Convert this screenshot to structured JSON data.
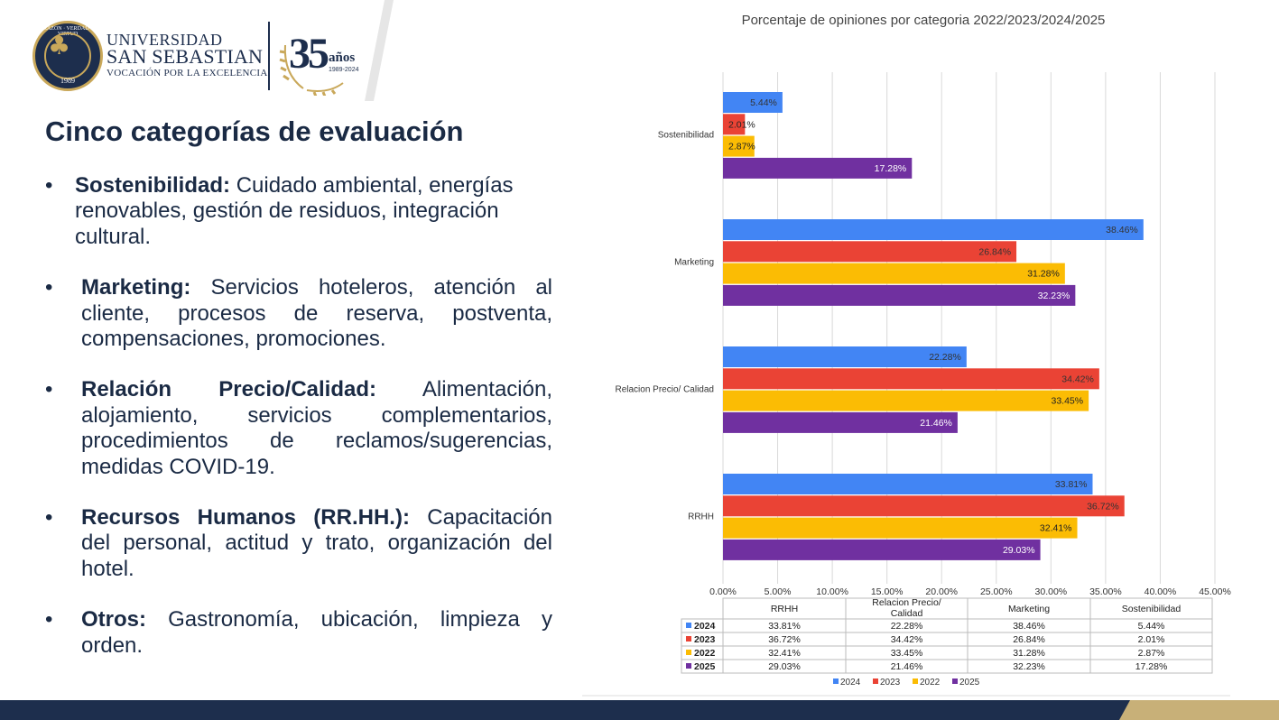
{
  "header": {
    "seal_year": "1989",
    "seal_motto": "RAZON · VERDAD · VIRTUD",
    "university_line1": "UNIVERSIDAD",
    "university_line2": "SAN SEBASTIAN",
    "tagline": "VOCACIÓN POR LA EXCELENCIA",
    "anniversary_number": "35",
    "anniversary_word": "años",
    "anniversary_years": "1989-2024"
  },
  "slide": {
    "title": "Cinco categorías de evaluación",
    "bullets": [
      {
        "label": "Sostenibilidad:",
        "text": "Cuidado ambiental, energías renovables, gestión de residuos, integración cultural."
      },
      {
        "label": "Marketing:",
        "text": "Servicios hoteleros, atención al cliente, procesos de reserva, postventa, compensaciones, promociones."
      },
      {
        "label": "Relación Precio/Calidad:",
        "text": "Alimentación, alojamiento, servicios complementarios, procedimientos de reclamos/sugerencias, medidas COVID-19."
      },
      {
        "label": "Recursos Humanos (RR.HH.):",
        "text": "Capacitación del personal, actitud y trato, organización del hotel."
      },
      {
        "label": "Otros:",
        "text": "Gastronomía, ubicación, limpieza y orden."
      }
    ],
    "bullet_symbol": "•"
  },
  "chart_data": {
    "type": "bar",
    "orientation": "horizontal",
    "title": "Porcentaje de opiniones por categoria 2022/2023/2024/2025",
    "categories": [
      "Sostenibilidad",
      "Marketing",
      "Relacion Precio/ Calidad",
      "RRHH"
    ],
    "table_headers": [
      "RRHH",
      "Relacion Precio/ Calidad",
      "Marketing",
      "Sostenibilidad"
    ],
    "series": [
      {
        "name": "2024",
        "color": "#4285f4",
        "values": {
          "RRHH": 33.81,
          "Relacion Precio/ Calidad": 22.28,
          "Marketing": 38.46,
          "Sostenibilidad": 5.44
        },
        "labels": {
          "RRHH": "33.81%",
          "Relacion Precio/ Calidad": "22.28%",
          "Marketing": "38.46%",
          "Sostenibilidad": "5.44%"
        }
      },
      {
        "name": "2023",
        "color": "#ea4335",
        "values": {
          "RRHH": 36.72,
          "Relacion Precio/ Calidad": 34.42,
          "Marketing": 26.84,
          "Sostenibilidad": 2.01
        },
        "labels": {
          "RRHH": "36.72%",
          "Relacion Precio/ Calidad": "34.42%",
          "Marketing": "26.84%",
          "Sostenibilidad": "2.01%"
        }
      },
      {
        "name": "2022",
        "color": "#fbbc04",
        "values": {
          "RRHH": 32.41,
          "Relacion Precio/ Calidad": 33.45,
          "Marketing": 31.28,
          "Sostenibilidad": 2.87
        },
        "labels": {
          "RRHH": "32.41%",
          "Relacion Precio/ Calidad": "33.45%",
          "Marketing": "31.28%",
          "Sostenibilidad": "2.87%"
        }
      },
      {
        "name": "2025",
        "color": "#7030a0",
        "values": {
          "RRHH": 29.03,
          "Relacion Precio/ Calidad": 21.46,
          "Marketing": 32.23,
          "Sostenibilidad": 17.28
        },
        "labels": {
          "RRHH": "29.03%",
          "Relacion Precio/ Calidad": "21.46%",
          "Marketing": "32.23%",
          "Sostenibilidad": "17.28%"
        }
      }
    ],
    "xlim": [
      0,
      45
    ],
    "xticks": [
      0,
      5,
      10,
      15,
      20,
      25,
      30,
      35,
      40,
      45
    ],
    "xtick_labels": [
      "0.00%",
      "5.00%",
      "10.00%",
      "15.00%",
      "20.00%",
      "25.00%",
      "30.00%",
      "35.00%",
      "40.00%",
      "45.00%"
    ],
    "grid": true,
    "legend_position": "bottom"
  },
  "colors": {
    "navy": "#1d2e4d",
    "gold": "#c9a85a",
    "text": "#1a2a44"
  }
}
